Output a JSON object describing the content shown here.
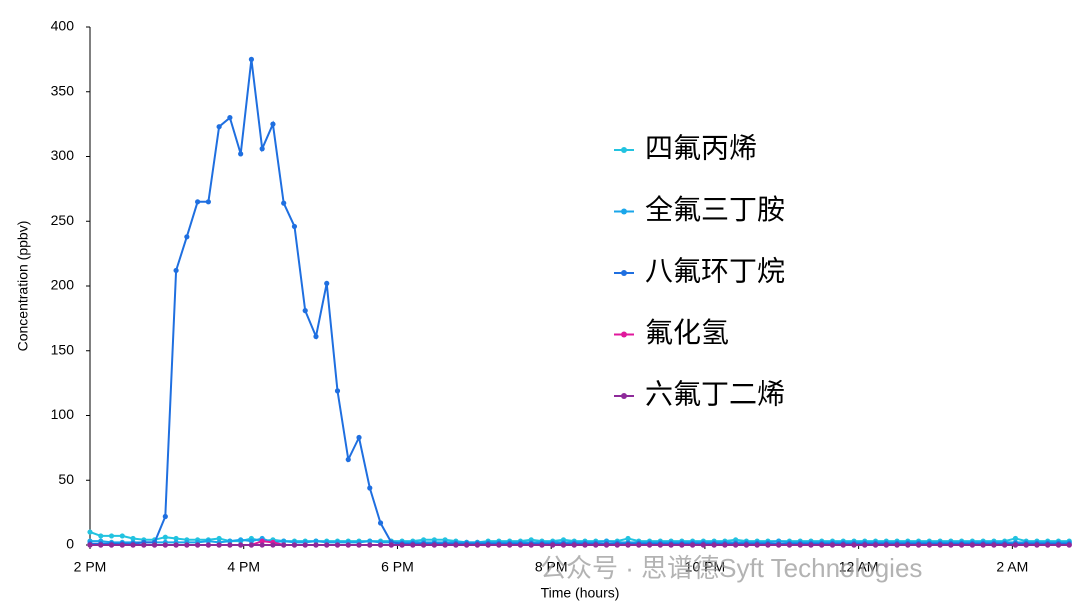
{
  "chart_data": {
    "type": "line",
    "y_label": "Concentration (ppbv)",
    "x_label": "Time (hours)",
    "watermark": "公众号 · 思谱德Syft Technologies",
    "ylim": [
      0,
      400
    ],
    "yticks": [
      0,
      50,
      100,
      150,
      200,
      250,
      300,
      350,
      400
    ],
    "xlim": [
      14,
      26.75
    ],
    "xticks": [
      {
        "value": 14,
        "label": "2 PM"
      },
      {
        "value": 16,
        "label": "4 PM"
      },
      {
        "value": 18,
        "label": "6 PM"
      },
      {
        "value": 20,
        "label": "8 PM"
      },
      {
        "value": 22,
        "label": "10 PM"
      },
      {
        "value": 24,
        "label": "12 AM"
      },
      {
        "value": 26,
        "label": "2 AM"
      }
    ],
    "x": [
      14.0,
      14.14,
      14.28,
      14.42,
      14.56,
      14.7,
      14.84,
      14.98,
      15.12,
      15.26,
      15.4,
      15.54,
      15.68,
      15.82,
      15.96,
      16.1,
      16.24,
      16.38,
      16.52,
      16.66,
      16.8,
      16.94,
      17.08,
      17.22,
      17.36,
      17.5,
      17.64,
      17.78,
      17.92,
      18.06,
      18.2,
      18.34,
      18.48,
      18.62,
      18.76,
      18.9,
      19.04,
      19.18,
      19.32,
      19.46,
      19.6,
      19.74,
      19.88,
      20.02,
      20.16,
      20.3,
      20.44,
      20.58,
      20.72,
      20.86,
      21.0,
      21.14,
      21.28,
      21.42,
      21.56,
      21.7,
      21.84,
      21.98,
      22.12,
      22.26,
      22.4,
      22.54,
      22.68,
      22.82,
      22.96,
      23.1,
      23.24,
      23.38,
      23.52,
      23.66,
      23.8,
      23.94,
      24.08,
      24.22,
      24.36,
      24.5,
      24.64,
      24.78,
      24.92,
      25.06,
      25.2,
      25.34,
      25.48,
      25.62,
      25.76,
      25.9,
      26.04,
      26.18,
      26.32,
      26.46,
      26.6,
      26.74
    ],
    "series": [
      {
        "name": "四氟丙烯",
        "color": "#22c3e0",
        "values": [
          10,
          7,
          7,
          7,
          5,
          4,
          4,
          6,
          5,
          4,
          4,
          4,
          5,
          3,
          3,
          5,
          3,
          4,
          3,
          3,
          3,
          3,
          3,
          3,
          3,
          3,
          3,
          3,
          3,
          3,
          3,
          4,
          4,
          4,
          3,
          2,
          2,
          3,
          3,
          3,
          3,
          4,
          3,
          3,
          4,
          3,
          3,
          3,
          3,
          3,
          5,
          3,
          3,
          3,
          3,
          3,
          3,
          3,
          3,
          3,
          4,
          3,
          3,
          3,
          3,
          3,
          3,
          3,
          3,
          3,
          3,
          3,
          3,
          3,
          3,
          3,
          3,
          3,
          3,
          3,
          3,
          3,
          3,
          3,
          3,
          3,
          5,
          3,
          3,
          3,
          3,
          3
        ]
      },
      {
        "name": "全氟三丁胺",
        "color": "#1aa6ea",
        "values": [
          3,
          3,
          2,
          2,
          2,
          2,
          2,
          2,
          2,
          2,
          2,
          3,
          2,
          3,
          4,
          3,
          5,
          2,
          3,
          2,
          2,
          3,
          2,
          2,
          2,
          2,
          3,
          2,
          2,
          2,
          2,
          2,
          2,
          2,
          2,
          2,
          2,
          2,
          2,
          2,
          2,
          2,
          2,
          2,
          2,
          2,
          2,
          2,
          3,
          2,
          2,
          2,
          2,
          2,
          2,
          2,
          2,
          2,
          2,
          2,
          2,
          2,
          2,
          2,
          3,
          2,
          2,
          2,
          2,
          2,
          2,
          2,
          2,
          2,
          2,
          2,
          2,
          2,
          2,
          2,
          2,
          2,
          2,
          2,
          2,
          2,
          2,
          2,
          2,
          2,
          2,
          2
        ]
      },
      {
        "name": "八氟环丁烷",
        "color": "#1f6fe0",
        "values": [
          1,
          1,
          1,
          1,
          1,
          2,
          2,
          22,
          212,
          238,
          265,
          265,
          323,
          330,
          302,
          375,
          306,
          325,
          264,
          246,
          181,
          161,
          202,
          119,
          66,
          83,
          44,
          17,
          2,
          1,
          1,
          1,
          1,
          1,
          1,
          1,
          1,
          1,
          1,
          1,
          1,
          1,
          1,
          1,
          1,
          1,
          1,
          1,
          1,
          1,
          1,
          1,
          1,
          1,
          1,
          1,
          1,
          1,
          1,
          1,
          1,
          1,
          1,
          1,
          1,
          1,
          1,
          1,
          1,
          1,
          1,
          1,
          1,
          1,
          1,
          1,
          1,
          1,
          1,
          1,
          1,
          1,
          1,
          1,
          1,
          1,
          1,
          1,
          1,
          1,
          1,
          1
        ]
      },
      {
        "name": "氟化氢",
        "color": "#e0189c",
        "values": [
          0,
          0,
          0,
          0,
          0,
          0,
          0,
          0,
          0,
          0,
          0,
          0,
          0,
          0,
          0,
          0,
          3,
          2,
          0,
          0,
          0,
          0,
          0,
          0,
          0,
          0,
          0,
          0,
          0,
          0,
          0,
          0,
          0,
          0,
          0,
          0,
          0,
          0,
          0,
          0,
          0,
          0,
          0,
          0,
          0,
          0,
          0,
          0,
          0,
          0,
          0,
          0,
          0,
          0,
          0,
          0,
          0,
          0,
          0,
          0,
          0,
          0,
          0,
          0,
          0,
          0,
          0,
          0,
          0,
          0,
          0,
          0,
          0,
          0,
          0,
          0,
          0,
          0,
          0,
          0,
          0,
          0,
          0,
          0,
          0,
          0,
          0,
          0,
          0,
          0,
          0,
          0
        ]
      },
      {
        "name": "六氟丁二烯",
        "color": "#8e2a9a",
        "values": [
          0,
          0,
          0,
          0,
          0,
          0,
          0,
          0,
          0,
          0,
          0,
          0,
          0,
          0,
          0,
          0,
          0,
          0,
          0,
          0,
          0,
          0,
          0,
          0,
          0,
          0,
          0,
          0,
          0,
          0,
          0,
          0,
          0,
          0,
          0,
          0,
          0,
          0,
          0,
          0,
          0,
          0,
          0,
          0,
          0,
          0,
          0,
          0,
          0,
          0,
          0,
          0,
          0,
          0,
          0,
          0,
          0,
          0,
          0,
          0,
          0,
          0,
          0,
          0,
          0,
          0,
          0,
          0,
          0,
          0,
          0,
          0,
          0,
          0,
          0,
          0,
          0,
          0,
          0,
          0,
          0,
          0,
          0,
          0,
          0,
          0,
          0,
          0,
          0,
          0,
          0,
          0
        ]
      }
    ]
  }
}
